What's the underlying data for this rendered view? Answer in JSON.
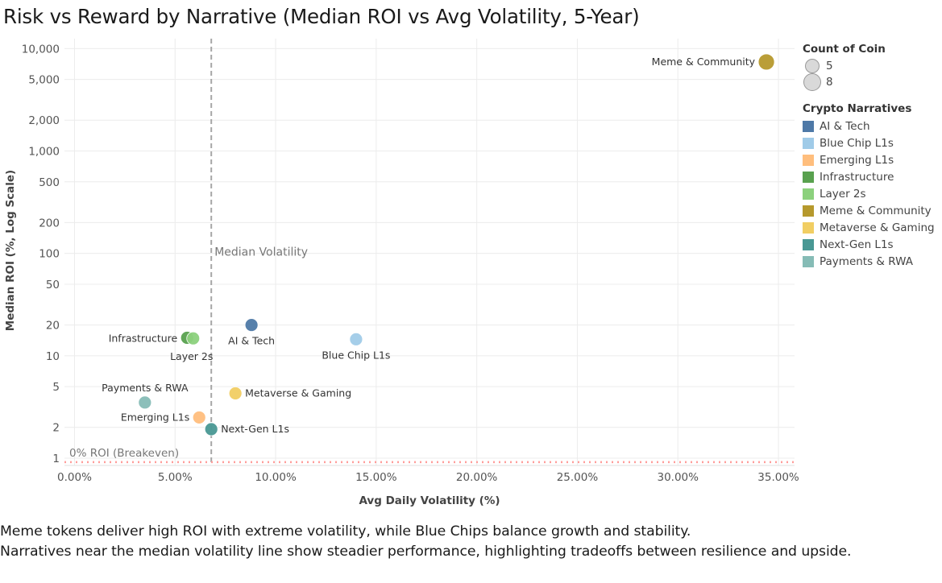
{
  "chart_data": {
    "type": "scatter",
    "title": "Risk vs Reward by Narrative (Median ROI vs Avg Volatility, 5-Year)",
    "xlabel": "Avg Daily Volatility (%)",
    "ylabel": "Median ROI (%, Log Scale)",
    "y_scale": "log",
    "xlim": [
      -0.5,
      35.8
    ],
    "ylim": [
      0.85,
      12500
    ],
    "x_ticks": [
      {
        "value": 0,
        "label": "0.00%"
      },
      {
        "value": 5,
        "label": "5.00%"
      },
      {
        "value": 10,
        "label": "10.00%"
      },
      {
        "value": 15,
        "label": "15.00%"
      },
      {
        "value": 20,
        "label": "20.00%"
      },
      {
        "value": 25,
        "label": "25.00%"
      },
      {
        "value": 30,
        "label": "30.00%"
      },
      {
        "value": 35,
        "label": "35.00%"
      }
    ],
    "y_ticks": [
      {
        "value": 1,
        "label": "1"
      },
      {
        "value": 2,
        "label": "2"
      },
      {
        "value": 5,
        "label": "5"
      },
      {
        "value": 10,
        "label": "10"
      },
      {
        "value": 20,
        "label": "20"
      },
      {
        "value": 50,
        "label": "50"
      },
      {
        "value": 100,
        "label": "100"
      },
      {
        "value": 200,
        "label": "200"
      },
      {
        "value": 500,
        "label": "500"
      },
      {
        "value": 1000,
        "label": "1,000"
      },
      {
        "value": 2000,
        "label": "2,000"
      },
      {
        "value": 5000,
        "label": "5,000"
      },
      {
        "value": 10000,
        "label": "10,000"
      }
    ],
    "grid": true,
    "points": [
      {
        "name": "AI & Tech",
        "x": 8.8,
        "y": 20,
        "count": 5,
        "color": "#4e79a7",
        "label_pos": "below"
      },
      {
        "name": "Blue Chip L1s",
        "x": 14.0,
        "y": 14.5,
        "count": 5,
        "color": "#a0cbe8",
        "label_pos": "below"
      },
      {
        "name": "Emerging L1s",
        "x": 6.2,
        "y": 2.5,
        "count": 5,
        "color": "#ffbe7d",
        "label_pos": "left"
      },
      {
        "name": "Infrastructure",
        "x": 5.6,
        "y": 15,
        "count": 5,
        "color": "#59a14f",
        "label_pos": "left"
      },
      {
        "name": "Layer 2s",
        "x": 5.9,
        "y": 14.8,
        "count": 5,
        "color": "#8cd17d",
        "label_pos": "below"
      },
      {
        "name": "Meme & Community",
        "x": 34.4,
        "y": 7400,
        "count": 8,
        "color": "#b6992d",
        "label_pos": "left"
      },
      {
        "name": "Metaverse & Gaming",
        "x": 8.0,
        "y": 4.3,
        "count": 5,
        "color": "#f1ce63",
        "label_pos": "right"
      },
      {
        "name": "Next-Gen L1s",
        "x": 6.8,
        "y": 1.92,
        "count": 5,
        "color": "#499894",
        "label_pos": "right"
      },
      {
        "name": "Payments & RWA",
        "x": 3.5,
        "y": 3.5,
        "count": 5,
        "color": "#86bcb6",
        "label_pos": "above"
      }
    ],
    "reference_lines": [
      {
        "axis": "x",
        "value": 6.8,
        "label": "Median Volatility",
        "style": "dashed",
        "color": "#a6a6a6"
      },
      {
        "axis": "y",
        "value": 0.95,
        "label": "0% ROI (Breakeven)",
        "style": "dotted",
        "color": "#ff9d9a"
      }
    ]
  },
  "legend": {
    "size_title": "Count of Coin",
    "size_items": [
      {
        "label": "5",
        "count": 5
      },
      {
        "label": "8",
        "count": 8
      }
    ],
    "color_title": "Crypto Narratives",
    "color_items": [
      {
        "label": "AI & Tech",
        "color": "#4e79a7"
      },
      {
        "label": "Blue Chip L1s",
        "color": "#a0cbe8"
      },
      {
        "label": "Emerging L1s",
        "color": "#ffbe7d"
      },
      {
        "label": "Infrastructure",
        "color": "#59a14f"
      },
      {
        "label": "Layer 2s",
        "color": "#8cd17d"
      },
      {
        "label": "Meme & Community",
        "color": "#b6992d"
      },
      {
        "label": "Metaverse & Gaming",
        "color": "#f1ce63"
      },
      {
        "label": "Next-Gen L1s",
        "color": "#499894"
      },
      {
        "label": "Payments & RWA",
        "color": "#86bcb6"
      }
    ]
  },
  "caption": {
    "line1": "Meme tokens deliver high ROI with extreme volatility, while Blue Chips balance growth and stability.",
    "line2": "Narratives near the median volatility line show steadier performance, highlighting tradeoffs between resilience and upside."
  }
}
